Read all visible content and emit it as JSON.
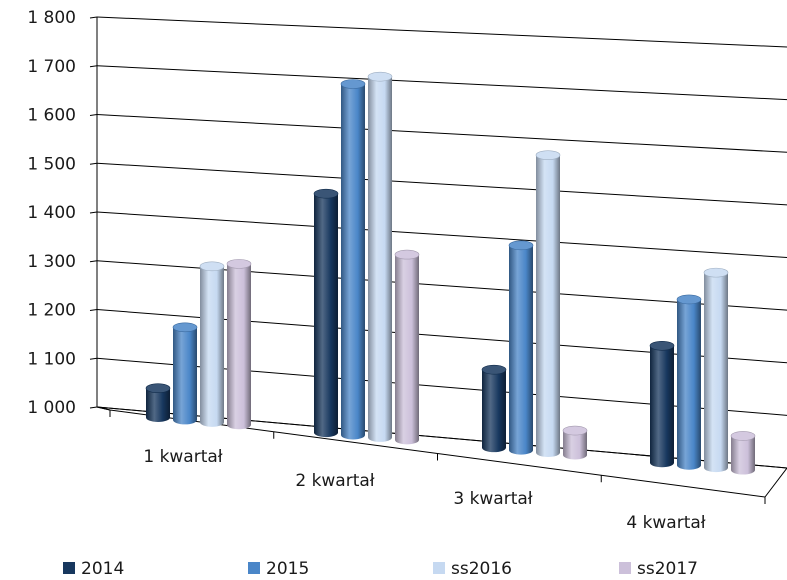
{
  "chart_data": {
    "type": "bar",
    "title": "",
    "xlabel": "",
    "ylabel": "",
    "ylim": [
      1000,
      1800
    ],
    "y_ticks": [
      "1 000",
      "1 100",
      "1 200",
      "1 300",
      "1 400",
      "1 500",
      "1 600",
      "1 700",
      "1 800"
    ],
    "categories": [
      "1 kwartał",
      "2 kwartał",
      "3 kwartał",
      "4 kwartał"
    ],
    "series": [
      {
        "name": "2014",
        "color": "#17375e",
        "values": [
          1060,
          1490,
          1160,
          1240
        ]
      },
      {
        "name": "2015",
        "color": "#4a86c8",
        "values": [
          1190,
          1720,
          1420,
          1340
        ]
      },
      {
        "name": "ss2016",
        "color": "#c6d9f1",
        "values": [
          1320,
          1740,
          1610,
          1400
        ]
      },
      {
        "name": "ss2017",
        "color": "#ccc0da",
        "values": [
          1330,
          1380,
          1050,
          1070
        ]
      }
    ],
    "grid": true,
    "legend": "bottom"
  }
}
